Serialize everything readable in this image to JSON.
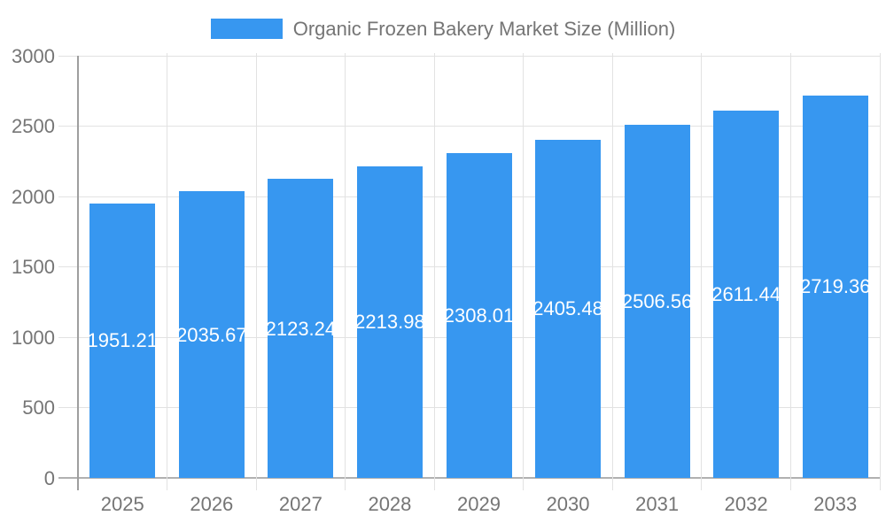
{
  "chart_data": {
    "type": "bar",
    "title": "Organic Frozen Bakery Market Size (Million)",
    "categories": [
      "2025",
      "2026",
      "2027",
      "2028",
      "2029",
      "2030",
      "2031",
      "2032",
      "2033"
    ],
    "values": [
      1951.21,
      2035.67,
      2123.24,
      2213.98,
      2308.01,
      2405.48,
      2506.56,
      2611.44,
      2719.36
    ],
    "value_decimals": 2,
    "xlabel": "",
    "ylabel": "",
    "y_ticks": [
      0,
      500,
      1000,
      1500,
      2000,
      2500,
      3000
    ],
    "ylim": [
      0,
      3000
    ],
    "grid": true,
    "legend_position": "top",
    "data_label_position": "center-of-bar"
  },
  "colors": {
    "bar": "#3797F0",
    "grid_light": "#e2e2e2",
    "axis_dark": "#9e9e9e",
    "baseline": "#b1b1b1",
    "tick_text": "#757575",
    "bar_label_text": "#ffffff",
    "background": "#ffffff"
  }
}
